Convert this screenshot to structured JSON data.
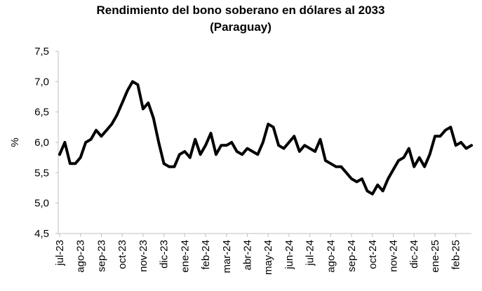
{
  "chart_data": {
    "type": "line",
    "title": "Rendimiento del bono soberano en dólares al 2033",
    "subtitle": "(Paraguay)",
    "y_label": "%",
    "categories": [
      "jul-23",
      null,
      null,
      null,
      "ago-23",
      null,
      null,
      null,
      "sep-23",
      null,
      null,
      null,
      "oct-23",
      null,
      null,
      null,
      "nov-23",
      null,
      null,
      null,
      "dic-23",
      null,
      null,
      null,
      "ene-24",
      null,
      null,
      null,
      "feb-24",
      null,
      null,
      null,
      "mar-24",
      null,
      null,
      null,
      "abr-24",
      null,
      null,
      null,
      "may-24",
      null,
      null,
      null,
      "jun-24",
      null,
      null,
      null,
      "jul-24",
      null,
      null,
      null,
      "ago-24",
      null,
      null,
      null,
      "sep-24",
      null,
      null,
      null,
      "oct-24",
      null,
      null,
      null,
      "nov-24",
      null,
      null,
      null,
      "dic-24",
      null,
      null,
      null,
      "ene-25",
      null,
      null,
      null,
      "feb-25",
      null,
      null,
      null
    ],
    "series": [
      {
        "name": "Rendimiento",
        "color": "#000000",
        "values": [
          5.8,
          6.0,
          5.65,
          5.65,
          5.75,
          6.0,
          6.05,
          6.2,
          6.1,
          6.2,
          6.3,
          6.45,
          6.65,
          6.85,
          7.0,
          6.95,
          6.55,
          6.65,
          6.4,
          6.0,
          5.65,
          5.6,
          5.6,
          5.8,
          5.85,
          5.75,
          6.05,
          5.8,
          5.95,
          6.15,
          5.8,
          5.95,
          5.95,
          6.0,
          5.85,
          5.8,
          5.9,
          5.85,
          5.8,
          6.0,
          6.3,
          6.25,
          5.95,
          5.9,
          6.0,
          6.1,
          5.85,
          5.95,
          5.9,
          5.85,
          6.05,
          5.7,
          5.65,
          5.6,
          5.6,
          5.5,
          5.4,
          5.35,
          5.4,
          5.2,
          5.15,
          5.3,
          5.2,
          5.4,
          5.55,
          5.7,
          5.75,
          5.9,
          5.6,
          5.75,
          5.6,
          5.8,
          6.1,
          6.1,
          6.2,
          6.25,
          5.95,
          6.0,
          5.9,
          5.95
        ]
      }
    ],
    "ylim": [
      4.5,
      7.5
    ],
    "yticks": [
      {
        "value": 4.5,
        "label": "4,5"
      },
      {
        "value": 5.0,
        "label": "5,0"
      },
      {
        "value": 5.5,
        "label": "5,5"
      },
      {
        "value": 6.0,
        "label": "6,0"
      },
      {
        "value": 6.5,
        "label": "6,5"
      },
      {
        "value": 7.0,
        "label": "7,0"
      },
      {
        "value": 7.5,
        "label": "7,5"
      }
    ],
    "grid": false
  }
}
